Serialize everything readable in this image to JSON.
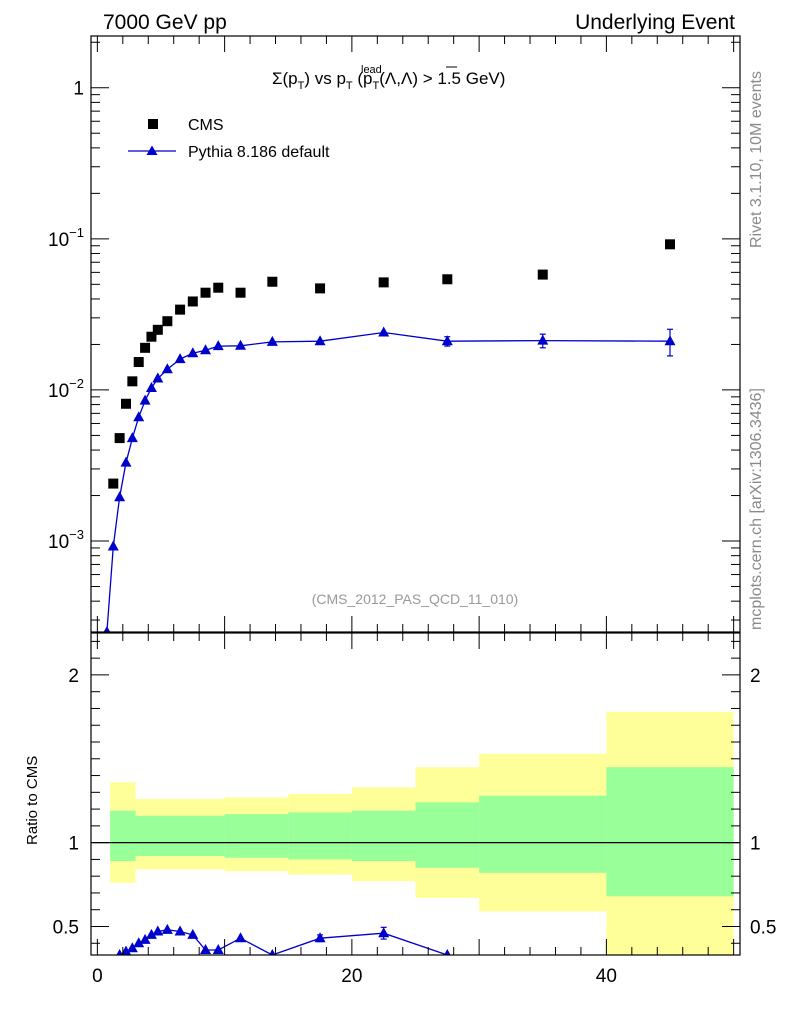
{
  "header": {
    "left": "7000 GeV pp",
    "right": "Underlying Event"
  },
  "side_labels": {
    "top": "Rivet 3.1.10,  10M events",
    "bottom": "mcplots.cern.ch [arXiv:1306.3436]"
  },
  "chart_data": [
    {
      "type": "scatter",
      "title": "Σ(p_T) vs p_T^lead (p_T(Λ,Λ̄) > 1.5 GeV)",
      "title_parts": {
        "sigma": "Σ(p",
        "sub_t": "T",
        "vs": ") vs p",
        "lead": "lead",
        "tail_a": " (p",
        "tail_b": "(Λ,",
        "lambda_bar": "Λ",
        "tail_c": ") > 1.5 GeV)"
      },
      "annotation": "(CMS_2012_PAS_QCD_11_010)",
      "x_scale": "linear",
      "y_scale": "log",
      "xlim": [
        -0.5,
        50.5
      ],
      "ylim": [
        0.00025,
        2.2
      ],
      "y_tick_labels": [
        {
          "value": 1,
          "base": "1",
          "exp": ""
        },
        {
          "value": 0.1,
          "base": "10",
          "exp": "−1"
        },
        {
          "value": 0.01,
          "base": "10",
          "exp": "−2"
        },
        {
          "value": 0.001,
          "base": "10",
          "exp": "−3"
        }
      ],
      "legend": {
        "placement": "top-left",
        "entries": [
          {
            "label": "CMS",
            "marker": "square",
            "color": "#000000"
          },
          {
            "label": "Pythia 8.186 default",
            "marker": "triangle",
            "color": "#0000cc"
          }
        ]
      },
      "series": [
        {
          "name": "CMS",
          "color": "#000000",
          "x": [
            1.25,
            1.75,
            2.25,
            2.75,
            3.25,
            3.75,
            4.25,
            4.75,
            5.5,
            6.5,
            7.5,
            8.5,
            9.5,
            11.25,
            13.75,
            17.5,
            22.5,
            27.5,
            35,
            45
          ],
          "y": [
            0.0024,
            0.0048,
            0.0081,
            0.0114,
            0.0153,
            0.019,
            0.0225,
            0.025,
            0.0285,
            0.034,
            0.0385,
            0.044,
            0.0475,
            0.044,
            0.052,
            0.047,
            0.0515,
            0.054,
            0.058,
            0.092
          ]
        },
        {
          "name": "Pythia 8.186 default",
          "color": "#0000cc",
          "x": [
            0.75,
            1.25,
            1.75,
            2.25,
            2.75,
            3.25,
            3.75,
            4.25,
            4.75,
            5.5,
            6.5,
            7.5,
            8.5,
            9.5,
            11.25,
            13.75,
            17.5,
            22.5,
            27.5,
            35,
            45
          ],
          "y": [
            0.00025,
            0.00092,
            0.00195,
            0.0033,
            0.0048,
            0.0066,
            0.0085,
            0.0103,
            0.0119,
            0.0137,
            0.016,
            0.0175,
            0.0183,
            0.0195,
            0.0196,
            0.0208,
            0.021,
            0.024,
            0.021,
            0.0212,
            0.021
          ],
          "yerr": [
            0,
            0,
            0,
            0,
            0,
            0,
            0,
            0,
            0,
            0,
            0,
            0,
            0,
            0,
            0,
            0,
            0,
            0,
            0.0015,
            0.0022,
            0.0042
          ]
        }
      ]
    },
    {
      "type": "line",
      "ylabel": "Ratio to CMS",
      "xlim": [
        -0.5,
        50.5
      ],
      "ylim": [
        0.33,
        2.25
      ],
      "x_tick_labels": [
        "0",
        "20",
        "40"
      ],
      "x_tick_values": [
        0,
        20,
        40
      ],
      "y_tick_labels": [
        "0.5",
        "1",
        "2"
      ],
      "y_tick_values": [
        0.5,
        1,
        2
      ],
      "reference_line": 1,
      "bands": {
        "edges": [
          1,
          3,
          10,
          15,
          20,
          25,
          30,
          40,
          50
        ],
        "yellow_lo": [
          0.76,
          0.84,
          0.83,
          0.81,
          0.77,
          0.67,
          0.59,
          0.32
        ],
        "yellow_hi": [
          1.36,
          1.26,
          1.27,
          1.29,
          1.33,
          1.45,
          1.53,
          1.78
        ],
        "green_lo": [
          0.89,
          0.92,
          0.91,
          0.9,
          0.89,
          0.85,
          0.82,
          0.68
        ],
        "green_hi": [
          1.19,
          1.16,
          1.17,
          1.18,
          1.19,
          1.24,
          1.28,
          1.45
        ]
      },
      "series": [
        {
          "name": "Pythia 8.186 default",
          "color": "#0000cc",
          "x": [
            1.75,
            2.25,
            2.75,
            3.25,
            3.75,
            4.25,
            4.75,
            5.5,
            6.5,
            7.5,
            8.5,
            9.5,
            11.25,
            13.75,
            17.5,
            22.5,
            27.5
          ],
          "y": [
            0.33,
            0.35,
            0.37,
            0.4,
            0.42,
            0.45,
            0.47,
            0.48,
            0.47,
            0.45,
            0.36,
            0.36,
            0.43,
            0.33,
            0.43,
            0.46,
            0.33
          ],
          "yerr": [
            0,
            0,
            0,
            0,
            0,
            0,
            0,
            0,
            0,
            0,
            0,
            0,
            0,
            0,
            0.02,
            0.035,
            0
          ]
        }
      ]
    }
  ]
}
